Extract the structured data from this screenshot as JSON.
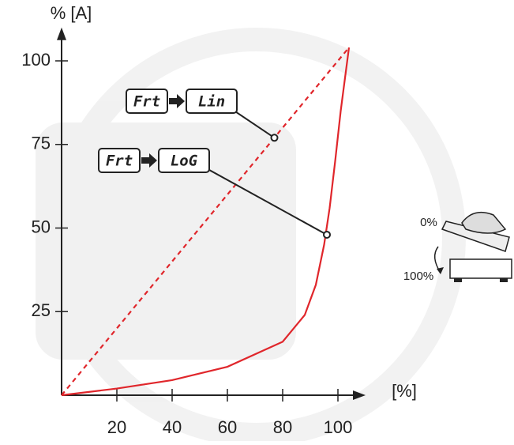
{
  "chart_data": {
    "type": "line",
    "y_label": "% [A]",
    "x_label": "[%]",
    "xlim": [
      0,
      110
    ],
    "ylim": [
      0,
      110
    ],
    "xticks": [
      20,
      40,
      60,
      80,
      100
    ],
    "yticks": [
      25,
      50,
      75,
      100
    ],
    "series": [
      {
        "color": "#e0262b",
        "dashed": true,
        "x": [
          0,
          104
        ],
        "values": [
          0,
          104
        ]
      },
      {
        "color": "#e0262b",
        "dashed": false,
        "x": [
          0,
          20,
          40,
          60,
          80,
          88,
          92,
          95,
          97,
          99,
          101,
          104
        ],
        "values": [
          0,
          2,
          4.5,
          8.5,
          16,
          24,
          33,
          45,
          56,
          70,
          85,
          104
        ]
      }
    ],
    "annotations": [
      {
        "from": "Frt",
        "to": "Lin",
        "x": 77,
        "y": 77
      },
      {
        "from": "Frt",
        "to": "LoG",
        "x": 96,
        "y": 48
      }
    ],
    "pedal": {
      "top": "0%",
      "bottom": "100%"
    }
  }
}
